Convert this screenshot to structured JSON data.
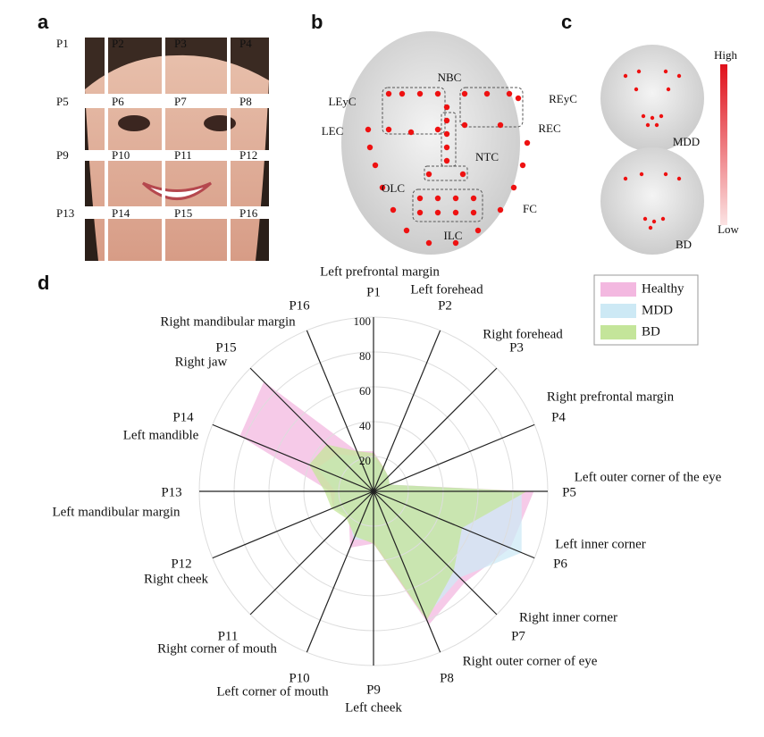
{
  "panel_labels": [
    "a",
    "b",
    "c",
    "d"
  ],
  "panel_a": {
    "tiles": [
      "P1",
      "P2",
      "P3",
      "P4",
      "P5",
      "P6",
      "P7",
      "P8",
      "P9",
      "P10",
      "P11",
      "P12",
      "P13",
      "P14",
      "P15",
      "P16"
    ]
  },
  "panel_b": {
    "regions": [
      "NBC",
      "LEyC",
      "REyC",
      "LEC",
      "REC",
      "NTC",
      "OLC",
      "FC",
      "ILC"
    ]
  },
  "panel_c": {
    "scale_high": "High",
    "scale_low": "Low",
    "faces": [
      "MDD",
      "BD"
    ]
  },
  "chart_data": {
    "type": "radar",
    "categories": [
      "P1",
      "P2",
      "P3",
      "P4",
      "P5",
      "P6",
      "P7",
      "P8",
      "P9",
      "P10",
      "P11",
      "P12",
      "P13",
      "P14",
      "P15",
      "P16"
    ],
    "category_names": [
      "Left prefrontal margin",
      "Left forehead",
      "Right forehead",
      "Right prefrontal margin",
      "Left outer corner of the eye",
      "Left inner corner",
      "Right inner corner",
      "Right outer corner of eye",
      "Left cheek",
      "Left corner of mouth",
      "Right corner of mouth",
      "Right cheek",
      "Left mandibular margin",
      "Left mandible",
      "Right jaw",
      "Right mandibular margin"
    ],
    "rlim": [
      0,
      100
    ],
    "rticks": [
      20,
      40,
      60,
      80,
      100
    ],
    "grid": true,
    "legend": "upper right",
    "series": [
      {
        "name": "Healthy",
        "color": "#f3b8e0",
        "values": [
          23,
          15,
          12,
          10,
          92,
          85,
          74,
          83,
          30,
          35,
          20,
          25,
          25,
          83,
          89,
          25
        ]
      },
      {
        "name": "MDD",
        "color": "#cde9f5",
        "values": [
          20,
          14,
          12,
          10,
          85,
          92,
          70,
          78,
          28,
          30,
          20,
          25,
          22,
          35,
          30,
          22
        ]
      },
      {
        "name": "BD",
        "color": "#c4e59a",
        "values": [
          22,
          15,
          12,
          10,
          88,
          55,
          65,
          80,
          30,
          28,
          22,
          26,
          28,
          40,
          38,
          25
        ]
      }
    ]
  }
}
